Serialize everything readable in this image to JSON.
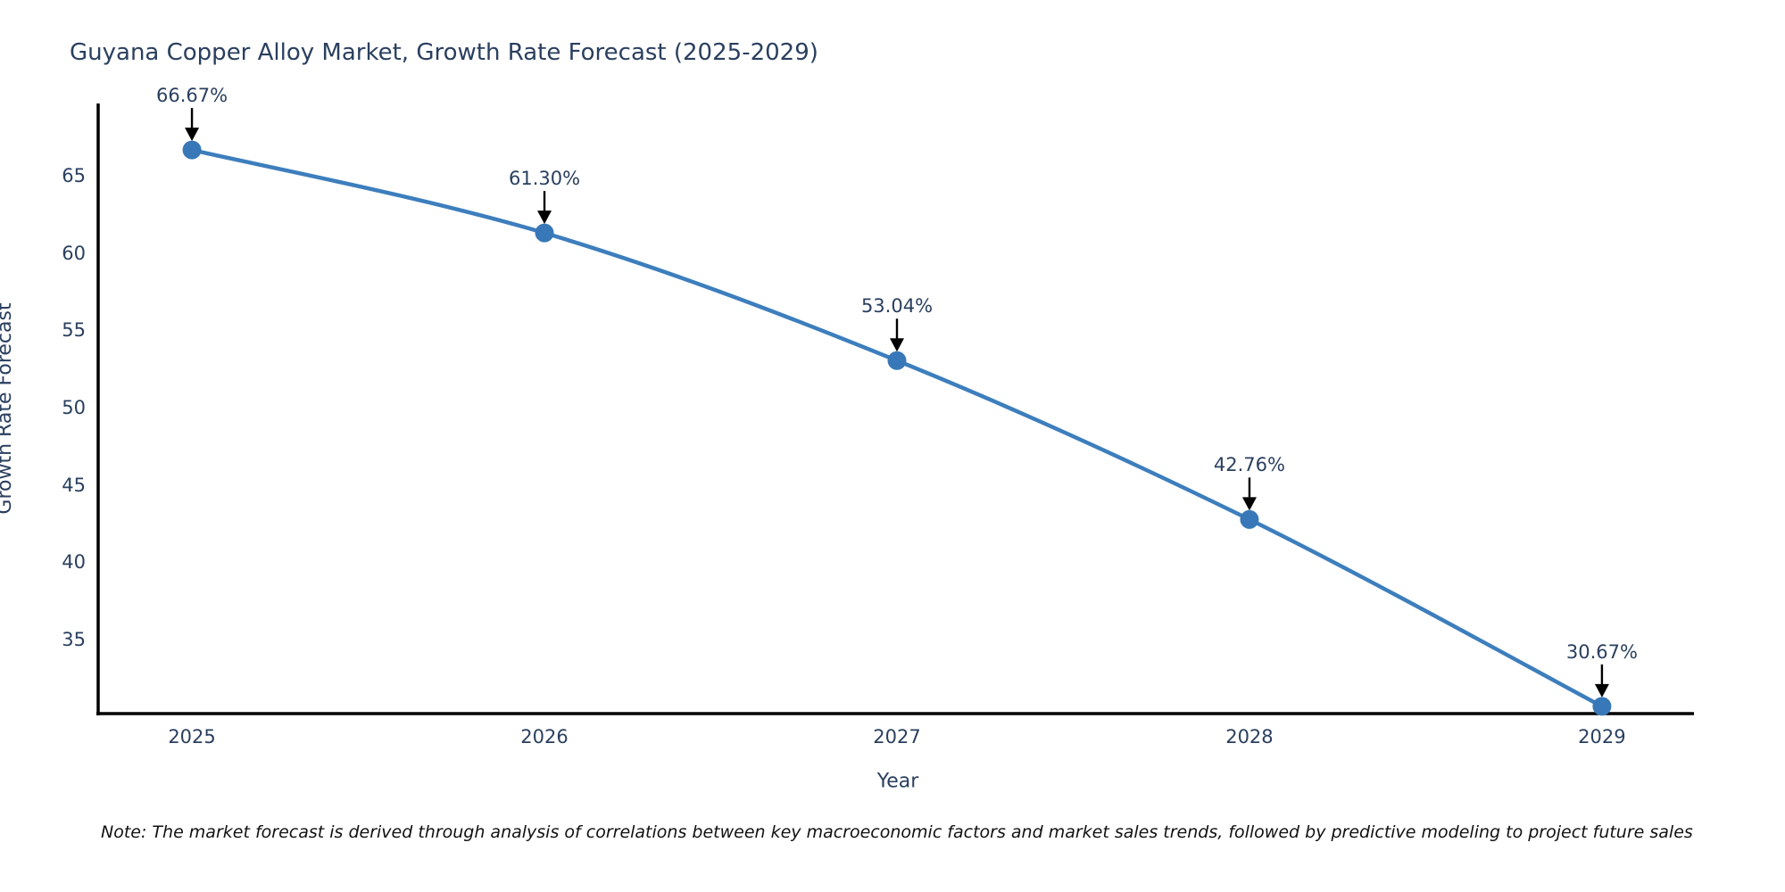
{
  "chart_data": {
    "type": "line",
    "title": "Guyana Copper Alloy Market, Growth Rate Forecast (2025-2029)",
    "xlabel": "Year",
    "ylabel": "Growth Rate Forecast",
    "x": [
      2025,
      2026,
      2027,
      2028,
      2029
    ],
    "values": [
      66.67,
      61.3,
      53.04,
      42.76,
      30.67
    ],
    "point_labels": [
      "66.67%",
      "61.30%",
      "53.04%",
      "42.76%",
      "30.67%"
    ],
    "xticks": [
      "2025",
      "2026",
      "2027",
      "2028",
      "2029"
    ],
    "yticks": [
      35,
      40,
      45,
      50,
      55,
      60,
      65
    ],
    "xlim": [
      2024.734,
      2029.261
    ],
    "ylim": [
      30.2,
      69.56
    ],
    "grid": false,
    "legend": false,
    "line_color": "#3d7ebd",
    "marker_color": "#3878b8",
    "axis_color": "#000000",
    "text_color": "#2a3f5f",
    "annotation_arrow_color": "#000000",
    "note": "Note: The market forecast is derived through analysis of correlations between key macroeconomic factors and market sales trends, followed by predictive modeling to project future sales"
  }
}
